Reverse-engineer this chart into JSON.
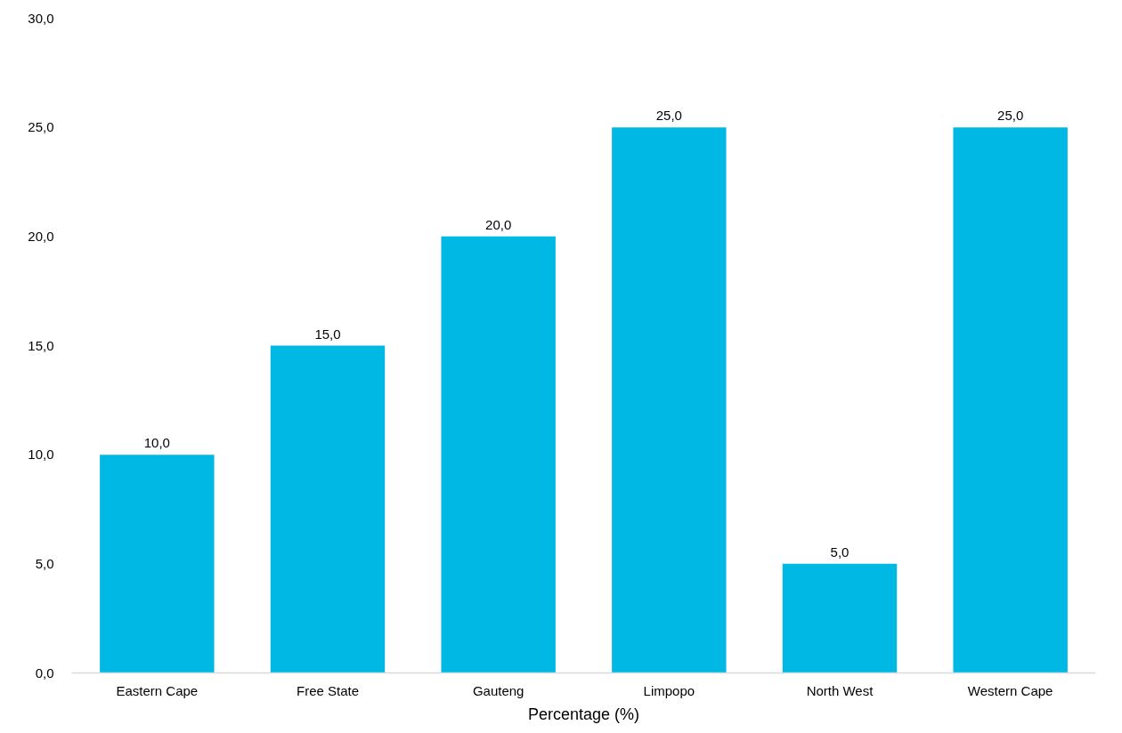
{
  "chart_data": {
    "type": "bar",
    "xlabel": "Percentage (%)",
    "categories": [
      "Eastern Cape",
      "Free State",
      "Gauteng",
      "Limpopo",
      "North West",
      "Western Cape"
    ],
    "values": [
      10,
      15,
      20,
      25,
      5,
      25
    ],
    "value_labels": [
      "10,0",
      "15,0",
      "20,0",
      "25,0",
      "5,0",
      "25,0"
    ],
    "color": "#00b8e4",
    "ylim": [
      0,
      30
    ],
    "yticks": [
      {
        "value": 0,
        "label": "0,0"
      },
      {
        "value": 5,
        "label": "5,0"
      },
      {
        "value": 10,
        "label": "10,0"
      },
      {
        "value": 15,
        "label": "15,0"
      },
      {
        "value": 20,
        "label": "20,0"
      },
      {
        "value": 25,
        "label": "25,0"
      },
      {
        "value": 30,
        "label": "30,0"
      }
    ],
    "grid": false
  }
}
